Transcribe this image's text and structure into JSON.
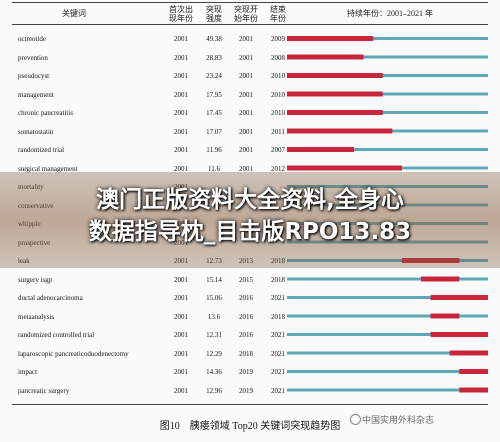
{
  "headers": {
    "keyword": "关键词",
    "first_year": [
      "首次出",
      "现年份"
    ],
    "strength": [
      "突现",
      "强度"
    ],
    "begin": [
      "突现开",
      "始年份"
    ],
    "end": [
      "结束",
      "年份"
    ],
    "timeline": "持续年份：2001–2021 年"
  },
  "caption": "图10　胰瘘领域 Top20 关键词突现趋势图",
  "banner": {
    "line1": "澳门正版资料大全资料,全身心",
    "line2": "数据指导枕_目击版RPO13.83"
  },
  "watermark": "中国实用外科杂志",
  "colors": {
    "burst": "#c8263a",
    "base": "#5fa8b8"
  },
  "chart_data": {
    "type": "table",
    "timeline_range": [
      2001,
      2021
    ],
    "rows": [
      {
        "keyword": "octreotide",
        "first": 2001,
        "strength": 49.38,
        "begin": 2001,
        "end": 2009
      },
      {
        "keyword": "prevention",
        "first": 2001,
        "strength": 28.83,
        "begin": 2001,
        "end": 2008
      },
      {
        "keyword": "pseudocyst",
        "first": 2001,
        "strength": 23.24,
        "begin": 2001,
        "end": 2010
      },
      {
        "keyword": "management",
        "first": 2001,
        "strength": 17.95,
        "begin": 2001,
        "end": 2010
      },
      {
        "keyword": "chronic pancreatitis",
        "first": 2001,
        "strength": 17.45,
        "begin": 2001,
        "end": 2010
      },
      {
        "keyword": "somatostatin",
        "first": 2001,
        "strength": 17.07,
        "begin": 2001,
        "end": 2011
      },
      {
        "keyword": "randomized trial",
        "first": 2001,
        "strength": 11.96,
        "begin": 2001,
        "end": 2007
      },
      {
        "keyword": "surgical management",
        "first": 2001,
        "strength": 11.6,
        "begin": 2001,
        "end": 2012
      },
      {
        "keyword": "mortality",
        "first": 2001,
        "strength": "",
        "begin": "",
        "end": ""
      },
      {
        "keyword": "conservative",
        "first": 2001,
        "strength": "",
        "begin": "",
        "end": ""
      },
      {
        "keyword": "whipple",
        "first": 2001,
        "strength": "",
        "begin": "",
        "end": ""
      },
      {
        "keyword": "prospective",
        "first": 2001,
        "strength": "",
        "begin": "",
        "end": ""
      },
      {
        "keyword": "leak",
        "first": 2001,
        "strength": 12.73,
        "begin": 2013,
        "end": 2018
      },
      {
        "keyword": "surgery isgp",
        "first": 2001,
        "strength": 15.14,
        "begin": 2015,
        "end": 2018
      },
      {
        "keyword": "ductal adenocarcinoma",
        "first": 2001,
        "strength": 15.06,
        "begin": 2016,
        "end": 2021
      },
      {
        "keyword": "metaanalysis",
        "first": 2001,
        "strength": 13.6,
        "begin": 2016,
        "end": 2018
      },
      {
        "keyword": "randomized controlled trial",
        "first": 2001,
        "strength": 12.31,
        "begin": 2016,
        "end": 2021
      },
      {
        "keyword": "laparoscopic pancreaticoduodenectomy",
        "first": 2001,
        "strength": 12.29,
        "begin": 2018,
        "end": 2021
      },
      {
        "keyword": "impact",
        "first": 2001,
        "strength": 14.36,
        "begin": 2019,
        "end": 2021
      },
      {
        "keyword": "pancreatic surgery",
        "first": 2001,
        "strength": 12.96,
        "begin": 2019,
        "end": 2021
      }
    ]
  }
}
